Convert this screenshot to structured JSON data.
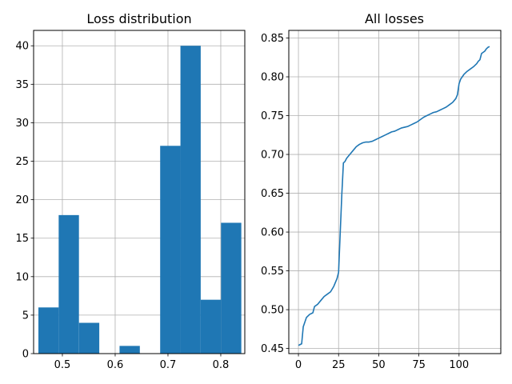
{
  "chart_data": [
    {
      "type": "histogram",
      "title": "Loss distribution",
      "xlabel": "",
      "ylabel": "",
      "grid": true,
      "color": "#1f77b4",
      "xlim": [
        0.4455,
        0.8455
      ],
      "ylim": [
        0,
        42
      ],
      "x_ticks": [
        0.5,
        0.6,
        0.7,
        0.8
      ],
      "x_tick_labels": [
        "0.5",
        "0.6",
        "0.7",
        "0.8"
      ],
      "y_ticks": [
        0,
        5,
        10,
        15,
        20,
        25,
        30,
        35,
        40
      ],
      "y_tick_labels": [
        "0",
        "5",
        "10",
        "15",
        "20",
        "25",
        "30",
        "35",
        "40"
      ],
      "bin_edges": [
        0.4546,
        0.493,
        0.5315,
        0.5699,
        0.6083,
        0.6468,
        0.6852,
        0.7236,
        0.7621,
        0.8005,
        0.8389
      ],
      "bars": [
        {
          "left": 0.4546,
          "width": 0.0384,
          "value": 6
        },
        {
          "left": 0.493,
          "width": 0.0384,
          "value": 18
        },
        {
          "left": 0.5315,
          "width": 0.0384,
          "value": 4
        },
        {
          "left": 0.5699,
          "width": 0.0384,
          "value": 0
        },
        {
          "left": 0.6083,
          "width": 0.0384,
          "value": 1
        },
        {
          "left": 0.6468,
          "width": 0.0384,
          "value": 0
        },
        {
          "left": 0.6852,
          "width": 0.0384,
          "value": 27
        },
        {
          "left": 0.7236,
          "width": 0.0384,
          "value": 40
        },
        {
          "left": 0.7621,
          "width": 0.0384,
          "value": 7
        },
        {
          "left": 0.8005,
          "width": 0.0384,
          "value": 17
        }
      ]
    },
    {
      "type": "line",
      "title": "All losses",
      "xlabel": "",
      "ylabel": "",
      "grid": true,
      "color": "#1f77b4",
      "xlim": [
        -6,
        126
      ],
      "ylim": [
        0.4434,
        0.8598
      ],
      "x_ticks": [
        0,
        25,
        50,
        75,
        100
      ],
      "x_tick_labels": [
        "0",
        "25",
        "50",
        "75",
        "100"
      ],
      "y_ticks": [
        0.45,
        0.5,
        0.55,
        0.6,
        0.65,
        0.7,
        0.75,
        0.8,
        0.85
      ],
      "y_tick_labels": [
        "0.45",
        "0.50",
        "0.55",
        "0.60",
        "0.65",
        "0.70",
        "0.75",
        "0.80",
        "0.85"
      ],
      "series": [
        {
          "x": [
            0,
            1,
            2,
            3,
            5,
            7,
            9,
            10,
            12,
            14,
            16,
            18,
            20,
            22,
            24,
            25,
            27,
            28,
            29,
            30,
            32,
            34,
            36,
            38,
            40,
            42,
            44,
            46,
            48,
            50,
            52,
            54,
            56,
            58,
            60,
            62,
            64,
            66,
            68,
            70,
            72,
            74,
            76,
            78,
            80,
            82,
            84,
            86,
            88,
            90,
            92,
            94,
            96,
            98,
            99,
            100,
            101,
            103,
            105,
            107,
            109,
            111,
            112,
            113,
            114,
            116,
            117,
            118,
            119
          ],
          "y": [
            0.454,
            0.455,
            0.456,
            0.478,
            0.49,
            0.494,
            0.496,
            0.504,
            0.507,
            0.512,
            0.517,
            0.52,
            0.523,
            0.53,
            0.54,
            0.548,
            0.648,
            0.689,
            0.691,
            0.695,
            0.7,
            0.705,
            0.71,
            0.713,
            0.715,
            0.716,
            0.716,
            0.717,
            0.719,
            0.721,
            0.723,
            0.725,
            0.727,
            0.729,
            0.73,
            0.732,
            0.734,
            0.735,
            0.736,
            0.738,
            0.74,
            0.742,
            0.745,
            0.748,
            0.75,
            0.752,
            0.754,
            0.755,
            0.757,
            0.759,
            0.761,
            0.764,
            0.767,
            0.772,
            0.777,
            0.791,
            0.797,
            0.803,
            0.807,
            0.81,
            0.813,
            0.817,
            0.82,
            0.822,
            0.83,
            0.833,
            0.836,
            0.838,
            0.839
          ]
        }
      ]
    }
  ]
}
